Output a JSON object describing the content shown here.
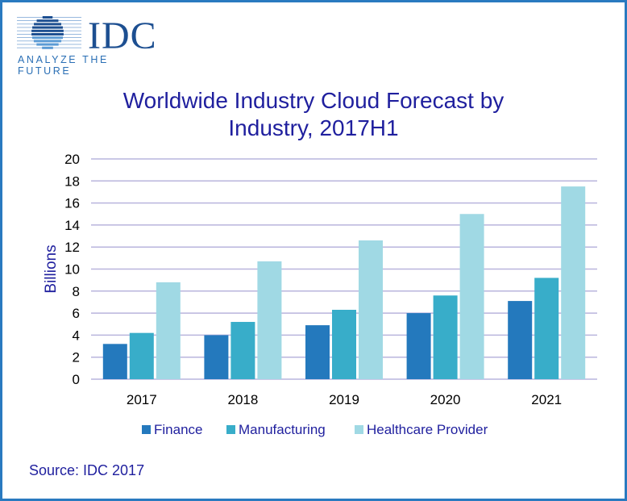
{
  "logo": {
    "word": "IDC",
    "tagline": "ANALYZE THE FUTURE"
  },
  "source": "Source: IDC 2017",
  "colors": {
    "frame": "#2a7ac0",
    "Finance": "#2479bd",
    "Manufacturing": "#38adc9",
    "Healthcare Provider": "#a0d9e4",
    "grid": "#b9b5dd",
    "text": "#1f1f9e"
  },
  "chart_data": {
    "type": "bar",
    "title": "Worldwide Industry Cloud Forecast by Industry, 2017H1",
    "title_lines": [
      "Worldwide Industry  Cloud Forecast by",
      "Industry,  2017H1"
    ],
    "xlabel": "",
    "ylabel": "Billions",
    "ylim": [
      0,
      20
    ],
    "yticks": [
      0,
      2,
      4,
      6,
      8,
      10,
      12,
      14,
      16,
      18,
      20
    ],
    "grid": true,
    "legend": "bottom",
    "categories": [
      "2017",
      "2018",
      "2019",
      "2020",
      "2021"
    ],
    "series": [
      {
        "name": "Finance",
        "values": [
          3.2,
          4.0,
          4.9,
          6.0,
          7.1
        ]
      },
      {
        "name": "Manufacturing",
        "values": [
          4.2,
          5.2,
          6.3,
          7.6,
          9.2
        ]
      },
      {
        "name": "Healthcare Provider",
        "values": [
          8.8,
          10.7,
          12.6,
          15.0,
          17.5
        ]
      }
    ]
  }
}
